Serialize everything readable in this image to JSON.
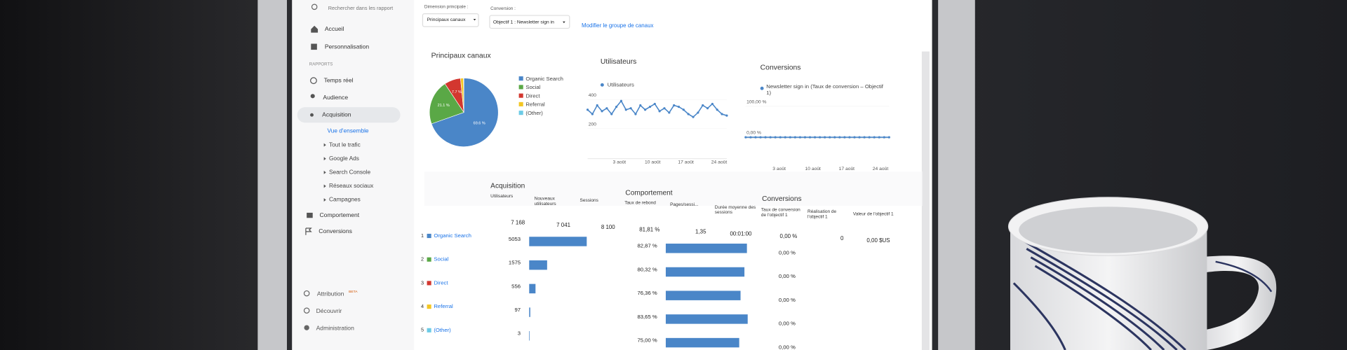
{
  "sidebar": {
    "search": "Rechercher dans les rapport",
    "home": "Accueil",
    "custom": "Personnalisation",
    "section": "RAPPORTS",
    "realtime": "Temps réel",
    "audience": "Audience",
    "acquisition": "Acquisition",
    "acq_items": [
      "Vue d'ensemble",
      "Tout le trafic",
      "Google Ads",
      "Search Console",
      "Réseaux sociaux",
      "Campagnes"
    ],
    "behavior": "Comportement",
    "conversions": "Conversions",
    "attribution": "Attribution",
    "beta": "BETA",
    "discover": "Découvrir",
    "admin": "Administration"
  },
  "toolbar": {
    "dimension_label": "Dimension principale :",
    "dimension": "Principaux canaux",
    "conversion_label": "Conversion :",
    "conversion": "Objectif 1 : Newsletter sign in",
    "modify": "Modifier le groupe de canaux"
  },
  "pie": {
    "title": "Principaux canaux",
    "series": [
      {
        "name": "Organic Search",
        "color": "#4a86c8",
        "value": 69.6,
        "label": "69.6 %"
      },
      {
        "name": "Social",
        "color": "#5aa846",
        "value": 21.1,
        "label": "21.1 %"
      },
      {
        "name": "Direct",
        "color": "#d3372f",
        "value": 7.7,
        "label": "7.7 %"
      },
      {
        "name": "Referral",
        "color": "#f3c623",
        "value": 1.4
      },
      {
        "name": "(Other)",
        "color": "#6ccbe6",
        "value": 0.2
      }
    ]
  },
  "users_chart": {
    "title": "Utilisateurs",
    "legend": "Utilisateurs",
    "color": "#4a86c8",
    "ylim": [
      0,
      500
    ],
    "yticks": [
      200,
      400
    ],
    "xticks": [
      "3 août",
      "10 août",
      "17 août",
      "24 août"
    ],
    "values": [
      330,
      300,
      360,
      320,
      340,
      300,
      350,
      390,
      330,
      340,
      300,
      360,
      330,
      350,
      370,
      320,
      340,
      310,
      360,
      350,
      330,
      300,
      280,
      310,
      360,
      340,
      370,
      330,
      300,
      290
    ]
  },
  "conv_chart": {
    "title": "Conversions",
    "legend": "Newsletter sign in (Taux de conversion – Objectif 1)",
    "color": "#4a86c8",
    "ylim": [
      0,
      100
    ],
    "yticks": [
      {
        "value": 0,
        "label": "0,00 %"
      },
      {
        "value": 100,
        "label": "100,00 %"
      }
    ],
    "xticks": [
      "3 août",
      "10 août",
      "17 août",
      "24 août"
    ],
    "values": [
      0,
      0,
      0,
      0,
      0,
      0,
      0,
      0,
      0,
      0,
      0,
      0,
      0,
      0,
      0,
      0,
      0,
      0,
      0,
      0,
      0,
      0,
      0,
      0,
      0,
      0,
      0,
      0,
      0,
      0
    ]
  },
  "table": {
    "groups": [
      "Acquisition",
      "Comportement",
      "Conversions"
    ],
    "headers": [
      "Utilisateurs",
      "Nouveaux utilisateurs",
      "Sessions",
      "Taux de rebond",
      "Pages/sessi...",
      "Durée moyenne des sessions",
      "Taux de conversion de l'objectif 1",
      "Réalisation de l'objectif 1",
      "Valeur de l'objectif 1"
    ],
    "totals": [
      "7 168",
      "7 041",
      "8 100",
      "81,81 %",
      "1,35",
      "00:01:00",
      "0,00 %",
      "0",
      "0,00 $US"
    ],
    "rows": [
      {
        "rank": "1",
        "channel": "Organic Search",
        "users": 5053,
        "bounce": 82.87,
        "bounce_label": "82,87 %",
        "conv_rate": "0,00 %"
      },
      {
        "rank": "2",
        "channel": "Social",
        "users": 1575,
        "bounce": 80.32,
        "bounce_label": "80,32 %",
        "conv_rate": "0,00 %"
      },
      {
        "rank": "3",
        "channel": "Direct",
        "users": 556,
        "bounce": 76.36,
        "bounce_label": "76,36 %",
        "conv_rate": "0,00 %"
      },
      {
        "rank": "4",
        "channel": "Referral",
        "users": 97,
        "bounce": 83.65,
        "bounce_label": "83,65 %",
        "conv_rate": "0,00 %"
      },
      {
        "rank": "5",
        "channel": "(Other)",
        "users": 3,
        "bounce": 75,
        "bounce_label": "75,00 %",
        "conv_rate": "0,00 %"
      }
    ]
  }
}
